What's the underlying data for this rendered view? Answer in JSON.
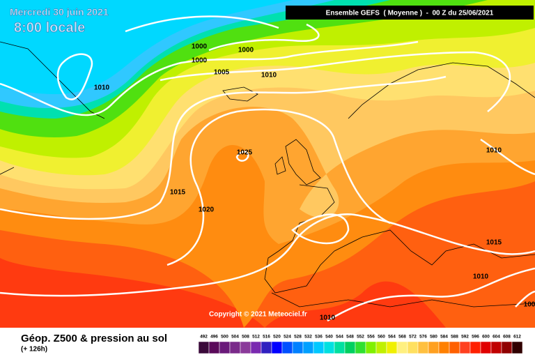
{
  "header": {
    "date": "Mercredi 30 juin 2021",
    "time": "8:00 locale",
    "run": "Ensemble GEFS  ( Moyenne )  -  00 Z du 25/06/2021"
  },
  "isobar_labels": [
    "1000",
    "1000",
    "1000",
    "1005",
    "1010",
    "1010",
    "1025",
    "1015",
    "1020",
    "1010",
    "1015",
    "1010",
    "1010",
    "100"
  ],
  "copyright": "Copyright © 2021 Meteociel.fr",
  "footer": {
    "title": "Géop. Z500 & pression au sol",
    "lead": "(+ 126h)"
  },
  "legend": {
    "values": [
      492,
      496,
      500,
      504,
      508,
      512,
      516,
      520,
      524,
      528,
      532,
      536,
      540,
      544,
      548,
      552,
      556,
      560,
      564,
      568,
      572,
      576,
      580,
      584,
      588,
      592,
      596,
      600,
      604,
      608,
      612
    ],
    "colors": [
      "#3a0a3a",
      "#5a0a5a",
      "#6a1a7a",
      "#7a2a8a",
      "#8a3a9a",
      "#7a2ab0",
      "#3020c0",
      "#0000ff",
      "#0050ff",
      "#0080ff",
      "#00a0ff",
      "#00c8ff",
      "#00e0e0",
      "#00e0a0",
      "#00d060",
      "#30e030",
      "#80f000",
      "#c0f000",
      "#f0f000",
      "#fff080",
      "#ffe060",
      "#ffc040",
      "#ffa020",
      "#ff8000",
      "#ff6000",
      "#ff4020",
      "#ff2000",
      "#e00000",
      "#c00000",
      "#900000",
      "#300000"
    ]
  }
}
